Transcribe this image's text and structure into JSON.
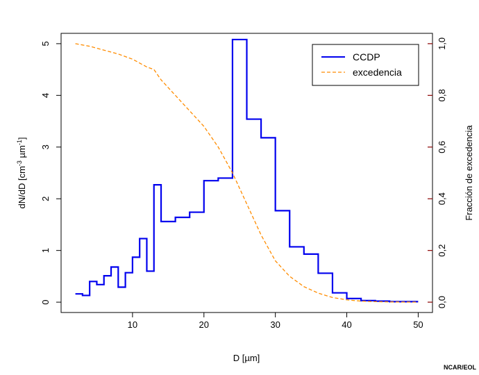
{
  "chart_data": {
    "type": "line",
    "xlabel": "D [µm]",
    "ylabel_left": "dN/dD [cm",
    "ylabel_left_sup1": "-3",
    "ylabel_left_mid": " µm",
    "ylabel_left_sup2": "-1",
    "ylabel_left_end": "]",
    "ylabel_right": "Fracción de excedencia",
    "credit": "NCAR/EOL",
    "xlim": [
      0,
      52
    ],
    "ylim_left": [
      -0.2,
      5.2
    ],
    "ylim_right": [
      -0.04,
      1.04
    ],
    "x_ticks": [
      10,
      20,
      30,
      40,
      50
    ],
    "x_tick_labels": [
      "10",
      "20",
      "30",
      "40",
      "50"
    ],
    "y_left_ticks": [
      0,
      1,
      2,
      3,
      4,
      5
    ],
    "y_left_tick_labels": [
      "0",
      "1",
      "2",
      "3",
      "4",
      "5"
    ],
    "y_right_ticks": [
      0,
      0.2,
      0.4,
      0.6,
      0.8,
      1.0
    ],
    "y_right_tick_labels": [
      "0,0",
      "0,2",
      "0,4",
      "0,6",
      "0,8",
      "1,0"
    ],
    "legend": {
      "position": "top-right",
      "entries": [
        "CCDP",
        "excedencia"
      ]
    },
    "series": [
      {
        "name": "CCDP",
        "axis": "left",
        "style": "step",
        "color": "#0000ee",
        "edges": [
          2,
          3,
          4,
          5,
          6,
          7,
          8,
          9,
          10,
          11,
          12,
          13,
          14,
          16,
          18,
          20,
          22,
          24,
          26,
          28,
          30,
          32,
          34,
          36,
          38,
          40,
          42,
          44,
          46,
          48,
          50
        ],
        "values": [
          0.16,
          0.13,
          0.4,
          0.34,
          0.51,
          0.68,
          0.29,
          0.57,
          0.87,
          1.23,
          0.6,
          2.27,
          1.56,
          1.64,
          1.74,
          2.35,
          2.4,
          5.08,
          3.54,
          3.18,
          1.77,
          1.07,
          0.93,
          0.56,
          0.18,
          0.07,
          0.03,
          0.02,
          0.01,
          0.01
        ]
      },
      {
        "name": "excedencia",
        "axis": "right",
        "style": "dashed",
        "color": "#ff8c00",
        "x": [
          2,
          4,
          6,
          8,
          10,
          12,
          13,
          14,
          16,
          18,
          20,
          22,
          24,
          26,
          28,
          30,
          32,
          34,
          36,
          38,
          40,
          42,
          44,
          46,
          48,
          50
        ],
        "y": [
          1.0,
          0.99,
          0.975,
          0.96,
          0.94,
          0.91,
          0.9,
          0.86,
          0.8,
          0.74,
          0.68,
          0.6,
          0.5,
          0.38,
          0.26,
          0.16,
          0.1,
          0.06,
          0.035,
          0.018,
          0.009,
          0.004,
          0.002,
          0.001,
          0.0005,
          0.0002
        ]
      }
    ]
  }
}
